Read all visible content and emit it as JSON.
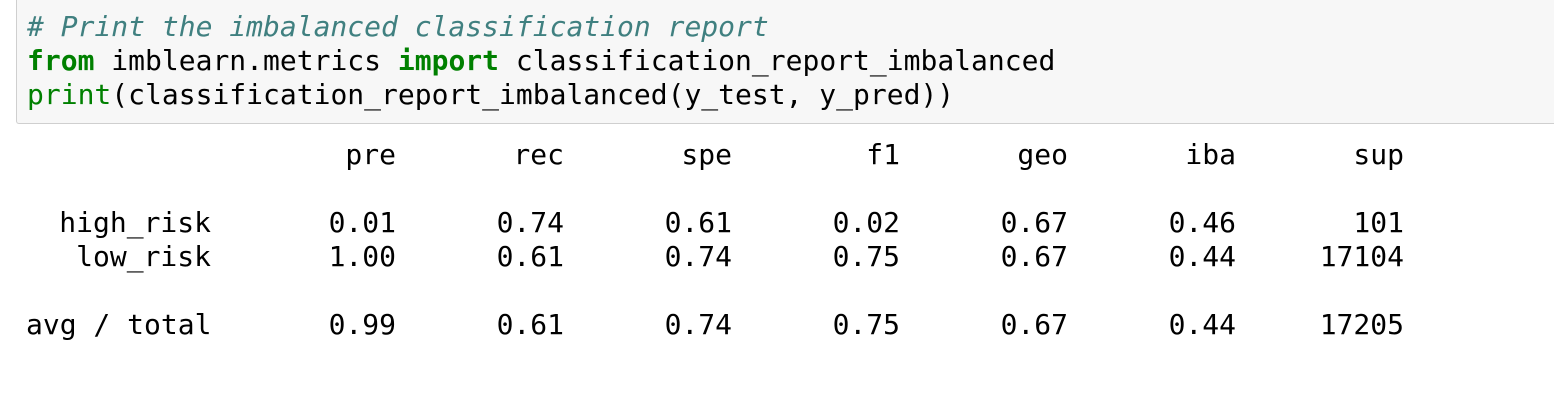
{
  "code": {
    "comment": "# Print the imbalanced classification report",
    "line2_kw_from": "from",
    "line2_module": " imblearn.metrics ",
    "line2_kw_import": "import",
    "line2_name": " classification_report_imbalanced",
    "line3_builtin": "print",
    "line3_rest": "(classification_report_imbalanced(y_test, y_pred))"
  },
  "report": {
    "headers": [
      "pre",
      "rec",
      "spe",
      "f1",
      "geo",
      "iba",
      "sup"
    ],
    "rows": [
      {
        "label": "high_risk",
        "values": [
          "0.01",
          "0.74",
          "0.61",
          "0.02",
          "0.67",
          "0.46",
          "101"
        ]
      },
      {
        "label": "low_risk",
        "values": [
          "1.00",
          "0.61",
          "0.74",
          "0.75",
          "0.67",
          "0.44",
          "17104"
        ]
      },
      {
        "label": "avg / total",
        "values": [
          "0.99",
          "0.61",
          "0.74",
          "0.75",
          "0.67",
          "0.44",
          "17205"
        ]
      }
    ]
  },
  "colors": {
    "keyword": "#008000",
    "comment": "#408080",
    "cell_background": "#f7f7f7"
  }
}
